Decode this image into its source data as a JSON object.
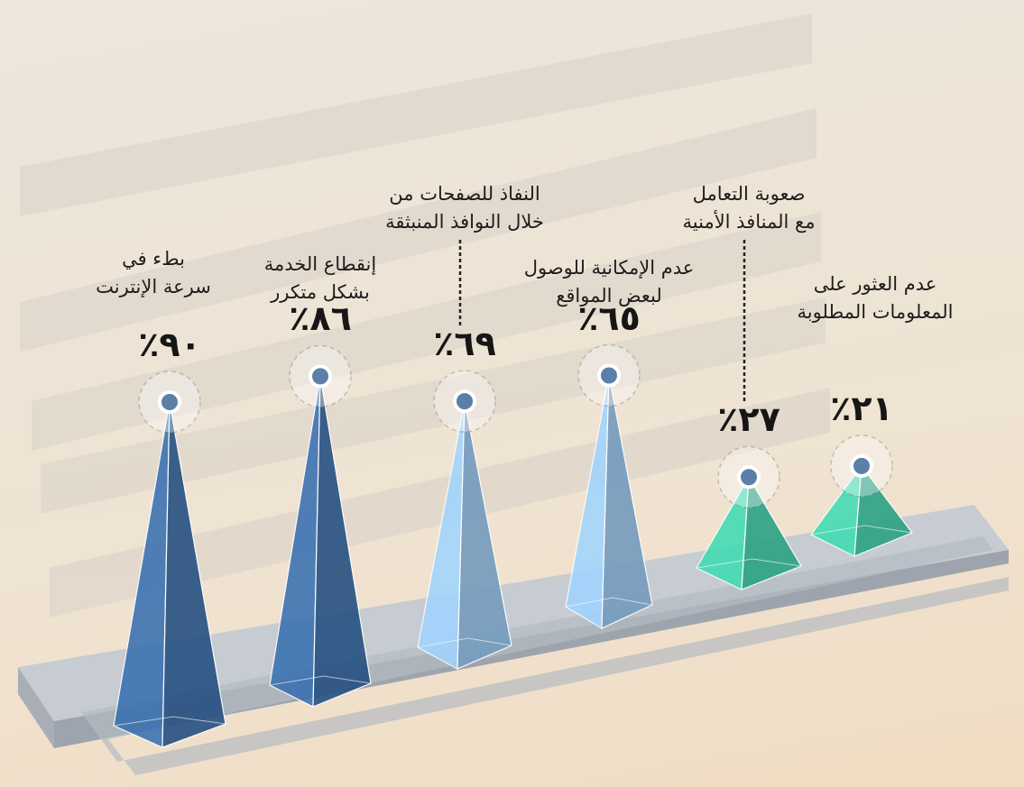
{
  "chart_data": {
    "type": "pyramid",
    "categories": [
      "بطء في\nسرعة الإنترنت",
      "إنقطاع الخدمة\nبشكل متكرر",
      "النفاذ للصفحات من\nخلال النوافذ المنبثقة",
      "عدم الإمكانية للوصول\nلبعض المواقع",
      "صعوبة التعامل\nمع المنافذ الأمنية",
      "عدم العثور على\nالمعلومات المطلوبة"
    ],
    "values": [
      90,
      86,
      69,
      65,
      27,
      21
    ],
    "value_labels": [
      "٪٩٠",
      "٪٨٦",
      "٪٦٩",
      "٪٦٥",
      "٪٢٧",
      "٪٢١"
    ],
    "colors": [
      "#2d5f99",
      "#2d5f99",
      "#8ab8df",
      "#8ab8df",
      "#33bf9c",
      "#33bf9c"
    ]
  }
}
